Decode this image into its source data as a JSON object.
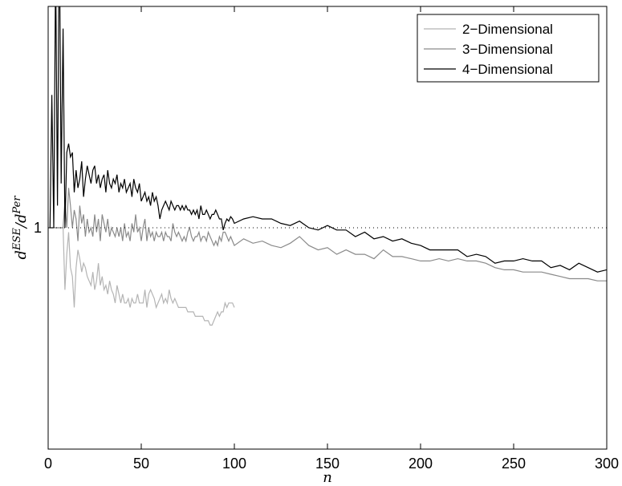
{
  "chart_data": {
    "type": "line",
    "title": "",
    "xlabel": "n",
    "ylabel": {
      "base": "d",
      "sup1": "ESE",
      "slash": "/d",
      "sup2": "Per"
    },
    "xlim": [
      0,
      300
    ],
    "ylim": [
      0,
      2
    ],
    "xticks": [
      0,
      50,
      100,
      150,
      200,
      250,
      300
    ],
    "yticks": [
      {
        "value": 1,
        "label": "1"
      }
    ],
    "reference_line": {
      "y": 1,
      "style": "dotted"
    },
    "grid": false,
    "legend": {
      "position": "top-right"
    },
    "series": [
      {
        "name": "2−Dimensional",
        "color": "#b4b4b4",
        "x": [
          1,
          2,
          3,
          4,
          5,
          6,
          7,
          8,
          9,
          10,
          11,
          12,
          13,
          14,
          15,
          16,
          17,
          18,
          19,
          20,
          21,
          22,
          23,
          24,
          25,
          26,
          27,
          28,
          29,
          30,
          31,
          32,
          33,
          34,
          35,
          36,
          37,
          38,
          39,
          40,
          41,
          42,
          43,
          44,
          45,
          46,
          47,
          48,
          49,
          50,
          51,
          52,
          53,
          54,
          55,
          56,
          57,
          58,
          59,
          60,
          61,
          62,
          63,
          64,
          65,
          66,
          67,
          68,
          69,
          70,
          71,
          72,
          73,
          74,
          75,
          76,
          77,
          78,
          79,
          80,
          81,
          82,
          83,
          84,
          85,
          86,
          87,
          88,
          89,
          90,
          91,
          92,
          93,
          94,
          95,
          96,
          97,
          98,
          99,
          100
        ],
        "y": [
          1.0,
          1.0,
          1.0,
          1.0,
          1.0,
          1.0,
          1.0,
          1.0,
          0.72,
          0.88,
          0.98,
          0.82,
          0.78,
          0.64,
          0.82,
          0.9,
          0.86,
          0.8,
          0.84,
          0.82,
          0.78,
          0.76,
          0.74,
          0.8,
          0.72,
          0.76,
          0.84,
          0.74,
          0.78,
          0.72,
          0.74,
          0.7,
          0.76,
          0.72,
          0.7,
          0.66,
          0.74,
          0.7,
          0.66,
          0.7,
          0.66,
          0.66,
          0.68,
          0.64,
          0.68,
          0.66,
          0.66,
          0.7,
          0.66,
          0.66,
          0.66,
          0.72,
          0.64,
          0.7,
          0.72,
          0.7,
          0.68,
          0.64,
          0.66,
          0.68,
          0.7,
          0.66,
          0.68,
          0.66,
          0.72,
          0.68,
          0.66,
          0.68,
          0.66,
          0.64,
          0.64,
          0.64,
          0.64,
          0.64,
          0.62,
          0.62,
          0.62,
          0.62,
          0.6,
          0.6,
          0.6,
          0.6,
          0.6,
          0.58,
          0.58,
          0.58,
          0.56,
          0.56,
          0.58,
          0.6,
          0.62,
          0.6,
          0.62,
          0.62,
          0.66,
          0.64,
          0.66,
          0.66,
          0.66,
          0.64
        ]
      },
      {
        "name": "3−Dimensional",
        "color": "#8a8a8a",
        "x": [
          1,
          2,
          3,
          4,
          5,
          6,
          7,
          8,
          9,
          10,
          11,
          12,
          13,
          14,
          15,
          16,
          17,
          18,
          19,
          20,
          21,
          22,
          23,
          24,
          25,
          26,
          27,
          28,
          29,
          30,
          31,
          32,
          33,
          34,
          35,
          36,
          37,
          38,
          39,
          40,
          41,
          42,
          43,
          44,
          45,
          46,
          47,
          48,
          49,
          50,
          51,
          52,
          53,
          54,
          55,
          56,
          57,
          58,
          59,
          60,
          61,
          62,
          63,
          64,
          65,
          66,
          67,
          68,
          69,
          70,
          71,
          72,
          73,
          74,
          75,
          76,
          77,
          78,
          79,
          80,
          81,
          82,
          83,
          84,
          85,
          86,
          87,
          88,
          89,
          90,
          91,
          92,
          93,
          94,
          95,
          96,
          97,
          98,
          99,
          100,
          105,
          110,
          115,
          120,
          125,
          130,
          135,
          140,
          145,
          150,
          155,
          160,
          165,
          170,
          175,
          180,
          185,
          190,
          195,
          200,
          205,
          210,
          215,
          220,
          225,
          230,
          235,
          240,
          245,
          250,
          255,
          260,
          265,
          270,
          275,
          280,
          285,
          290,
          295,
          300
        ],
        "y": [
          1.0,
          1.0,
          1.0,
          1.0,
          1.0,
          1.0,
          1.0,
          1.0,
          1.12,
          1.0,
          1.18,
          1.1,
          1.0,
          1.08,
          1.04,
          0.94,
          1.1,
          1.02,
          1.06,
          0.96,
          1.04,
          0.98,
          1.0,
          0.96,
          1.06,
          0.98,
          1.04,
          0.94,
          1.06,
          1.02,
          0.98,
          1.04,
          0.96,
          1.0,
          0.98,
          0.96,
          1.0,
          0.96,
          1.0,
          0.94,
          1.02,
          0.96,
          0.98,
          0.94,
          1.02,
          0.98,
          1.06,
          0.98,
          1.0,
          0.94,
          1.0,
          1.04,
          0.94,
          1.0,
          0.96,
          0.98,
          0.94,
          0.98,
          0.96,
          0.96,
          0.98,
          0.94,
          0.98,
          0.96,
          0.96,
          0.94,
          1.02,
          0.98,
          0.96,
          0.98,
          0.96,
          0.94,
          0.96,
          0.94,
          0.98,
          1.0,
          0.96,
          0.94,
          0.96,
          0.96,
          0.98,
          0.94,
          0.96,
          0.96,
          0.94,
          0.98,
          0.96,
          0.94,
          0.92,
          0.94,
          0.92,
          0.96,
          0.94,
          0.98,
          0.98,
          0.96,
          0.94,
          0.96,
          0.94,
          0.92,
          0.95,
          0.93,
          0.94,
          0.92,
          0.91,
          0.93,
          0.96,
          0.92,
          0.9,
          0.91,
          0.88,
          0.9,
          0.88,
          0.88,
          0.86,
          0.9,
          0.87,
          0.87,
          0.86,
          0.85,
          0.85,
          0.86,
          0.85,
          0.86,
          0.85,
          0.85,
          0.84,
          0.82,
          0.81,
          0.81,
          0.8,
          0.8,
          0.8,
          0.79,
          0.78,
          0.77,
          0.77,
          0.77,
          0.76,
          0.76
        ]
      },
      {
        "name": "4−Dimensional",
        "color": "#000000",
        "x": [
          1,
          2,
          3,
          4,
          5,
          6,
          7,
          8,
          9,
          10,
          11,
          12,
          13,
          14,
          15,
          16,
          17,
          18,
          19,
          20,
          21,
          22,
          23,
          24,
          25,
          26,
          27,
          28,
          29,
          30,
          31,
          32,
          33,
          34,
          35,
          36,
          37,
          38,
          39,
          40,
          41,
          42,
          43,
          44,
          45,
          46,
          47,
          48,
          49,
          50,
          51,
          52,
          53,
          54,
          55,
          56,
          57,
          58,
          59,
          60,
          61,
          62,
          63,
          64,
          65,
          66,
          67,
          68,
          69,
          70,
          71,
          72,
          73,
          74,
          75,
          76,
          77,
          78,
          79,
          80,
          81,
          82,
          83,
          84,
          85,
          86,
          87,
          88,
          89,
          90,
          91,
          92,
          93,
          94,
          95,
          96,
          97,
          98,
          99,
          100,
          105,
          110,
          115,
          120,
          125,
          130,
          135,
          140,
          145,
          150,
          155,
          160,
          165,
          170,
          175,
          180,
          185,
          190,
          195,
          200,
          205,
          210,
          215,
          220,
          225,
          230,
          235,
          240,
          245,
          250,
          255,
          260,
          265,
          270,
          275,
          280,
          285,
          290,
          295,
          300
        ],
        "y": [
          1.0,
          1.6,
          1.0,
          2.2,
          1.1,
          2.4,
          1.2,
          1.9,
          1.0,
          1.34,
          1.38,
          1.32,
          1.34,
          1.16,
          1.26,
          1.18,
          1.22,
          1.3,
          1.14,
          1.22,
          1.28,
          1.24,
          1.2,
          1.26,
          1.28,
          1.2,
          1.24,
          1.18,
          1.22,
          1.24,
          1.16,
          1.26,
          1.2,
          1.18,
          1.22,
          1.2,
          1.24,
          1.16,
          1.2,
          1.18,
          1.22,
          1.16,
          1.18,
          1.2,
          1.14,
          1.22,
          1.18,
          1.16,
          1.2,
          1.12,
          1.14,
          1.16,
          1.12,
          1.14,
          1.1,
          1.16,
          1.12,
          1.14,
          1.1,
          1.04,
          1.08,
          1.1,
          1.12,
          1.1,
          1.08,
          1.12,
          1.1,
          1.08,
          1.1,
          1.1,
          1.08,
          1.1,
          1.08,
          1.1,
          1.08,
          1.08,
          1.06,
          1.08,
          1.06,
          1.08,
          1.04,
          1.1,
          1.06,
          1.06,
          1.08,
          1.06,
          1.04,
          1.06,
          1.06,
          1.08,
          1.06,
          1.04,
          1.04,
          0.99,
          1.02,
          1.04,
          1.03,
          1.05,
          1.04,
          1.02,
          1.04,
          1.05,
          1.04,
          1.04,
          1.02,
          1.01,
          1.03,
          1.0,
          0.99,
          1.01,
          0.99,
          0.99,
          0.96,
          0.98,
          0.95,
          0.96,
          0.94,
          0.95,
          0.93,
          0.92,
          0.9,
          0.9,
          0.9,
          0.9,
          0.87,
          0.88,
          0.87,
          0.84,
          0.85,
          0.85,
          0.86,
          0.85,
          0.85,
          0.82,
          0.83,
          0.81,
          0.84,
          0.82,
          0.8,
          0.81
        ]
      }
    ]
  }
}
